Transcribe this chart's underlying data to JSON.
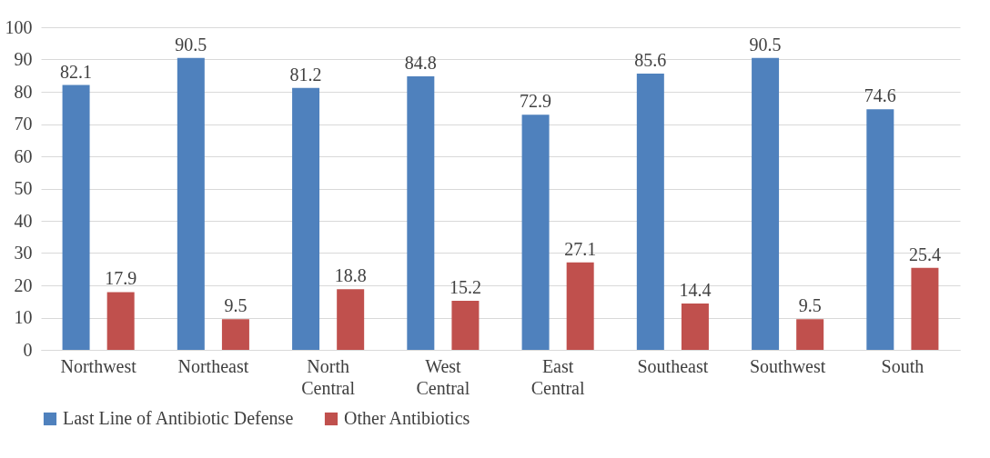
{
  "chart_data": {
    "type": "bar",
    "categories": [
      "Northwest",
      "Northeast",
      "North Central",
      "West Central",
      "East Central",
      "Southeast",
      "Southwest",
      "South"
    ],
    "series": [
      {
        "name": "Last Line of Antibiotic Defense",
        "color": "#4f81bd",
        "values": [
          82.1,
          90.5,
          81.2,
          84.8,
          72.9,
          85.6,
          90.5,
          74.6
        ]
      },
      {
        "name": "Other Antibiotics",
        "color": "#c0504d",
        "values": [
          17.9,
          9.5,
          18.8,
          15.2,
          27.1,
          14.4,
          9.5,
          25.4
        ]
      }
    ],
    "ylim": [
      0,
      100
    ],
    "yticks": [
      0,
      10,
      20,
      30,
      40,
      50,
      60,
      70,
      80,
      90,
      100
    ],
    "grid": "y",
    "legend": "bottom",
    "data_labels": true
  }
}
